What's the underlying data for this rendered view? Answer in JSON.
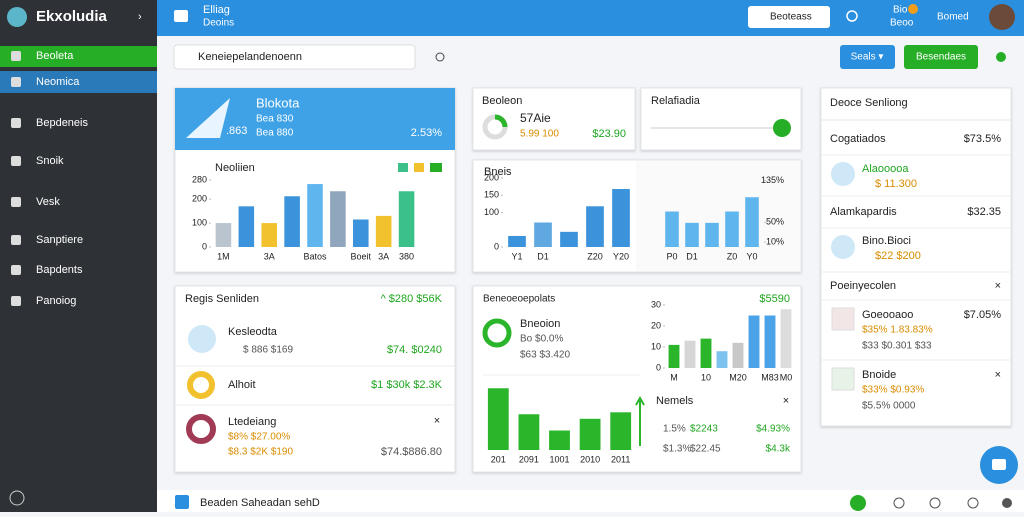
{
  "sidebar": {
    "brand": "Ekxoludia",
    "items": [
      "Beoleta",
      "Neomica",
      "Bepdeneis",
      "Snoik",
      "Vesk",
      "Sanptiere",
      "Bapdents",
      "Panoiog"
    ]
  },
  "topbar": {
    "title": "Elliag",
    "subtitle": "Deoins",
    "search": "Beoteass",
    "badge": "Bio",
    "sub_badge": "Beoo",
    "user": "Bomed"
  },
  "toolbar": {
    "search": "Keneiepelandenoenn",
    "select": "Seals ▾",
    "button": "Besendaes"
  },
  "hero": {
    "title": "Blokota",
    "value": ".863",
    "line1": "Bea 830",
    "line2": "Bea 880",
    "change": "2.53%"
  },
  "stat": {
    "title": "Beoleon",
    "value": "57Aie",
    "sub": "5.99  100",
    "amount": "$23.90"
  },
  "slider": {
    "title": "Relafiadia"
  },
  "chart_data": [
    {
      "type": "bar",
      "title": "Neoliien",
      "categories": [
        "1M",
        null,
        "3A",
        null,
        "Batos",
        null,
        "Boeit",
        "3A",
        "380"
      ],
      "values": [
        100,
        170,
        100,
        212,
        263,
        233,
        115,
        130,
        233
      ],
      "colors": [
        "#b9c4cf",
        "#3a93db",
        "#f2c12e",
        "#3a93db",
        "#5fb6ee",
        "#8fa6bd",
        "#3a93db",
        "#f2c12e",
        "#3cc08a"
      ],
      "ylim": [
        0,
        280
      ],
      "yticks": [
        0,
        100,
        200,
        280
      ]
    },
    {
      "type": "bar",
      "title": "Bneis",
      "categories": [
        "Y1",
        "D1",
        null,
        "Z20",
        "Y20"
      ],
      "values": [
        32,
        71,
        44,
        118,
        168
      ],
      "colors": [
        "#3a93db",
        "#5fa9e0",
        "#3a93db",
        "#3a93db",
        "#3a93db"
      ],
      "ylim": [
        0,
        200
      ],
      "yticks": [
        0,
        100,
        150,
        200
      ]
    },
    {
      "type": "bar",
      "categories": [
        "P0",
        "D1",
        null,
        "Z0",
        "Y0"
      ],
      "values": [
        72,
        49,
        49,
        72,
        101
      ],
      "colors": [
        "#5fb6ee",
        "#5fb6ee",
        "#5fb6ee",
        "#5fb6ee",
        "#5fb6ee"
      ],
      "ylim": [
        0,
        140
      ],
      "yticks": [
        {
          "value": 10,
          "label": "10%"
        },
        {
          "value": 50,
          "label": "50%"
        },
        {
          "value": 135,
          "label": "135%"
        }
      ]
    },
    {
      "type": "bar",
      "categories": [
        "M",
        null,
        "10",
        null,
        "M20",
        null,
        "M83",
        "M0"
      ],
      "values": [
        11,
        13,
        14,
        8,
        12,
        25,
        25,
        28
      ],
      "colors": [
        "#2bb52b",
        "#d6d6d6",
        "#2bb52b",
        "#7cc3ef",
        "#c8c8c8",
        "#4aa3e8",
        "#4aa3e8",
        "#dcdcdc"
      ],
      "ylim": [
        0,
        30
      ],
      "yticks": [
        0,
        10,
        20,
        30
      ]
    },
    {
      "type": "bar",
      "categories": [
        "201",
        "2091",
        "1001",
        "2010",
        "2011"
      ],
      "values": [
        95,
        55,
        30,
        48,
        58
      ],
      "colors": [
        "#2bb52b",
        "#2bb52b",
        "#2bb52b",
        "#2bb52b",
        "#2bb52b"
      ],
      "ylim": [
        0,
        100
      ]
    }
  ],
  "right_card": {
    "title": "Deoce Senliong",
    "rows": [
      {
        "label": "Cogatiados",
        "value": "$73.5%"
      },
      {
        "label": "Alaooooa",
        "value": "$ 11.300"
      },
      {
        "label": "Alamkapardis",
        "value": "$32.35"
      },
      {
        "label": "Bino.Bioci",
        "value": "$22  $200"
      },
      {
        "label": "Poeinyecolen",
        "value": "×"
      },
      {
        "label": "Goeooaoo",
        "value": "$7.05%",
        "l2": "$35%  1.83.83%",
        "l3": "$33  $0.301  $33"
      },
      {
        "label": "Bnoide",
        "value": "×",
        "l2": "$33%  $0.93%",
        "l3": "$5.5%  0000"
      }
    ]
  },
  "left_card": {
    "title": "Regis Senliden",
    "total": "^  $280 $56K",
    "rows": [
      {
        "label": "Kesleodta",
        "sub": "$ 886  $169",
        "value": "$74.  $0240"
      },
      {
        "label": "Alhoit",
        "value": "$1 $30k  $2.3K"
      },
      {
        "label": "Ltedeiang",
        "close": "×",
        "sub": "$8%  $27.00%",
        "sub2": "$8.3  $2K  $190",
        "value": "$74.$886.80"
      }
    ]
  },
  "mid_card": {
    "title": "Beneoeoepolats",
    "total": "$5590",
    "label": "Bneoion",
    "sub": "Bo  $0.0%",
    "sub2": "$63  $3.420",
    "panel": {
      "title": "Nemels",
      "close": "×",
      "rows": [
        [
          "1.5%",
          "$2243",
          "$4.93%"
        ],
        [
          "$1.3%",
          "$22.45",
          "$4.3k"
        ]
      ]
    }
  },
  "footer": {
    "text": "Beaden Saheadan sehD"
  }
}
